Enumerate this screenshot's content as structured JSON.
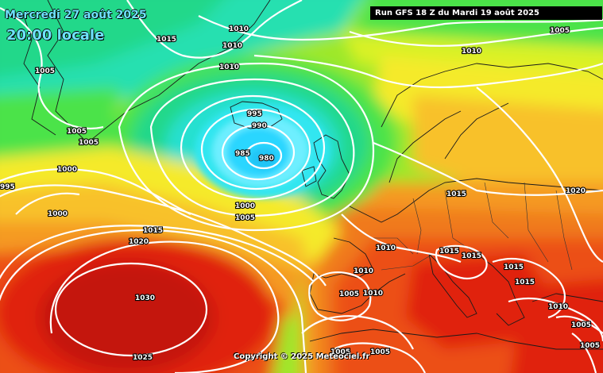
{
  "header": {
    "date_label": "Mercredi 27 août 2025",
    "time_label": "20:00 locale",
    "run_label": "Run GFS 18 Z du Mardi 19 août 2025"
  },
  "footer": {
    "copyright": "Copyright © 2025 Meteociel.fr"
  },
  "colors": {
    "deep_low": "#2ad6ff",
    "low": "#7ff0ff",
    "cyan": "#27e0d0",
    "teal_green": "#22d88a",
    "green": "#4be34a",
    "light_green": "#9ee82a",
    "yellow_green": "#d9f227",
    "yellow": "#f5ea2c",
    "yellow_orange": "#f8c12a",
    "orange": "#f59a22",
    "dark_orange": "#f07a1c",
    "red_orange": "#ec4f14",
    "red": "#e0240f",
    "dark_red": "#c4150c"
  },
  "isobar_labels": [
    {
      "id": "iso-1005-nw",
      "text": "1005"
    },
    {
      "id": "iso-1015-top",
      "text": "1015"
    },
    {
      "id": "iso-1010-a",
      "text": "1010"
    },
    {
      "id": "iso-1010-b",
      "text": "1010"
    },
    {
      "id": "iso-1010-c",
      "text": "1010"
    },
    {
      "id": "iso-1010-ne",
      "text": "1010"
    },
    {
      "id": "iso-1005-ne",
      "text": "1005"
    },
    {
      "id": "iso-1005-w1",
      "text": "1005"
    },
    {
      "id": "iso-1005-w2",
      "text": "1005"
    },
    {
      "id": "iso-1005-w3",
      "text": "1005"
    },
    {
      "id": "iso-1000-w",
      "text": "1000"
    },
    {
      "id": "iso-995-edge",
      "text": "995"
    },
    {
      "id": "iso-1000-sw",
      "text": "1000"
    },
    {
      "id": "iso-995-low",
      "text": "995"
    },
    {
      "id": "iso-990-low",
      "text": "990"
    },
    {
      "id": "iso-985-low",
      "text": "985"
    },
    {
      "id": "iso-980-low",
      "text": "980"
    },
    {
      "id": "iso-1000-s",
      "text": "1000"
    },
    {
      "id": "iso-1005-s",
      "text": "1005"
    },
    {
      "id": "iso-1015-mid",
      "text": "1015"
    },
    {
      "id": "iso-1020-mid",
      "text": "1020"
    },
    {
      "id": "iso-1030-high",
      "text": "1030"
    },
    {
      "id": "iso-1025-high",
      "text": "1025"
    },
    {
      "id": "iso-1015-eu",
      "text": "1015"
    },
    {
      "id": "iso-1020-east",
      "text": "1020"
    },
    {
      "id": "iso-1010-fr",
      "text": "1010"
    },
    {
      "id": "iso-1010-sp",
      "text": "1010"
    },
    {
      "id": "iso-1005-sp",
      "text": "1005"
    },
    {
      "id": "iso-1010-sp2",
      "text": "1010"
    },
    {
      "id": "iso-1015-it1",
      "text": "1015"
    },
    {
      "id": "iso-1015-it2",
      "text": "1015"
    },
    {
      "id": "iso-1015-bk",
      "text": "1015"
    },
    {
      "id": "iso-1015-gr",
      "text": "1015"
    },
    {
      "id": "iso-1010-tr",
      "text": "1010"
    },
    {
      "id": "iso-1005-tr",
      "text": "1005"
    },
    {
      "id": "iso-1005-af1",
      "text": "1005"
    },
    {
      "id": "iso-1005-af2",
      "text": "1005"
    },
    {
      "id": "iso-1005-se",
      "text": "1005"
    }
  ]
}
